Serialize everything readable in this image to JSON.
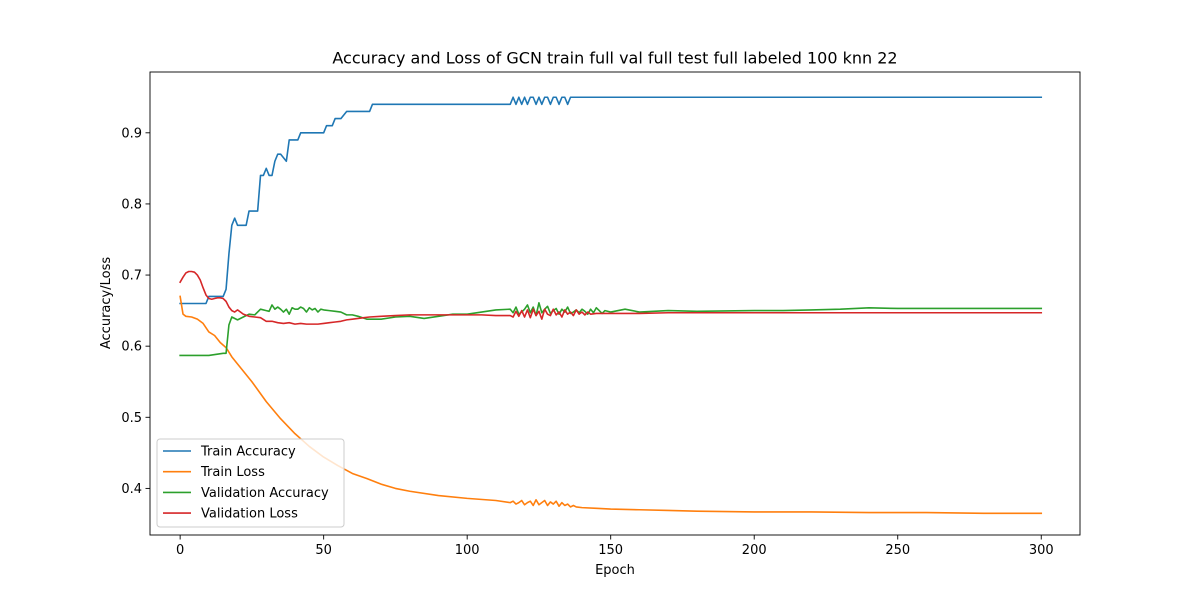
{
  "chart_data": {
    "type": "line",
    "title": "Accuracy and Loss of GCN train full val full test full labeled 100 knn 22",
    "xlabel": "Epoch",
    "ylabel": "Accuracy/Loss",
    "xlim": [
      -10.5,
      313.5
    ],
    "ylim": [
      0.3345,
      0.9855
    ],
    "xticks": [
      0,
      50,
      100,
      150,
      200,
      250,
      300
    ],
    "yticks": [
      0.4,
      0.5,
      0.6,
      0.7,
      0.8,
      0.9
    ],
    "xtick_labels": [
      "0",
      "50",
      "100",
      "150",
      "200",
      "250",
      "300"
    ],
    "ytick_labels": [
      "0.4",
      "0.5",
      "0.6",
      "0.7",
      "0.8",
      "0.9"
    ],
    "legend_position": "lower-left",
    "series": [
      {
        "name": "Train Accuracy",
        "color": "#1f77b4",
        "x": [
          0,
          9,
          10,
          14,
          15,
          16,
          17,
          18,
          19,
          20,
          23,
          24,
          27,
          28,
          29,
          30,
          31,
          32,
          33,
          34,
          35,
          37,
          38,
          39,
          41,
          42,
          47,
          48,
          50,
          51,
          52,
          53,
          54,
          55,
          56,
          58,
          59,
          60,
          61,
          66,
          67,
          68,
          115,
          116,
          117,
          118,
          119,
          120,
          121,
          122,
          123,
          124,
          125,
          126,
          127,
          128,
          129,
          130,
          131,
          132,
          133,
          134,
          135,
          136,
          137,
          140,
          300
        ],
        "y": [
          0.66,
          0.66,
          0.67,
          0.67,
          0.67,
          0.68,
          0.73,
          0.77,
          0.78,
          0.77,
          0.77,
          0.79,
          0.79,
          0.84,
          0.84,
          0.85,
          0.84,
          0.84,
          0.86,
          0.87,
          0.87,
          0.86,
          0.89,
          0.89,
          0.89,
          0.9,
          0.9,
          0.9,
          0.9,
          0.91,
          0.91,
          0.91,
          0.92,
          0.92,
          0.92,
          0.93,
          0.93,
          0.93,
          0.93,
          0.93,
          0.94,
          0.94,
          0.94,
          0.95,
          0.94,
          0.95,
          0.94,
          0.95,
          0.94,
          0.95,
          0.95,
          0.94,
          0.95,
          0.94,
          0.95,
          0.95,
          0.94,
          0.95,
          0.95,
          0.94,
          0.95,
          0.95,
          0.94,
          0.95,
          0.95,
          0.95,
          0.95
        ]
      },
      {
        "name": "Train Loss",
        "color": "#ff7f0e",
        "x": [
          0,
          1,
          2,
          4,
          6,
          8,
          10,
          12,
          14,
          16,
          18,
          20,
          25,
          30,
          35,
          40,
          45,
          50,
          55,
          60,
          65,
          70,
          75,
          80,
          90,
          100,
          110,
          115,
          116,
          117,
          118,
          119,
          120,
          121,
          122,
          123,
          124,
          125,
          126,
          127,
          128,
          129,
          130,
          131,
          132,
          133,
          134,
          135,
          136,
          137,
          138,
          140,
          145,
          150,
          160,
          170,
          180,
          200,
          220,
          240,
          260,
          280,
          300
        ],
        "y": [
          0.67,
          0.645,
          0.642,
          0.641,
          0.638,
          0.632,
          0.62,
          0.615,
          0.605,
          0.598,
          0.585,
          0.575,
          0.55,
          0.522,
          0.498,
          0.477,
          0.459,
          0.444,
          0.432,
          0.421,
          0.414,
          0.406,
          0.4,
          0.396,
          0.39,
          0.386,
          0.383,
          0.38,
          0.382,
          0.378,
          0.38,
          0.383,
          0.377,
          0.38,
          0.382,
          0.376,
          0.384,
          0.377,
          0.38,
          0.383,
          0.376,
          0.381,
          0.378,
          0.382,
          0.375,
          0.38,
          0.376,
          0.378,
          0.374,
          0.376,
          0.374,
          0.373,
          0.372,
          0.371,
          0.37,
          0.369,
          0.368,
          0.367,
          0.367,
          0.366,
          0.366,
          0.365,
          0.365
        ]
      },
      {
        "name": "Validation Accuracy",
        "color": "#2ca02c",
        "x": [
          0,
          10,
          15,
          16,
          17,
          18,
          20,
          22,
          24,
          26,
          28,
          30,
          31,
          32,
          33,
          34,
          35,
          36,
          37,
          38,
          39,
          40,
          41,
          42,
          43,
          44,
          45,
          46,
          47,
          48,
          49,
          50,
          52,
          54,
          56,
          58,
          60,
          62,
          65,
          70,
          75,
          80,
          85,
          90,
          95,
          100,
          105,
          110,
          115,
          116,
          117,
          118,
          119,
          120,
          121,
          122,
          123,
          124,
          125,
          126,
          127,
          128,
          129,
          130,
          131,
          132,
          133,
          134,
          135,
          136,
          137,
          138,
          139,
          140,
          141,
          142,
          143,
          144,
          145,
          146,
          147,
          148,
          150,
          155,
          160,
          170,
          180,
          200,
          210,
          220,
          230,
          240,
          250,
          260,
          280,
          300
        ],
        "y": [
          0.587,
          0.587,
          0.59,
          0.59,
          0.63,
          0.641,
          0.637,
          0.641,
          0.645,
          0.644,
          0.652,
          0.65,
          0.649,
          0.658,
          0.652,
          0.655,
          0.652,
          0.648,
          0.652,
          0.645,
          0.654,
          0.652,
          0.652,
          0.655,
          0.653,
          0.648,
          0.654,
          0.651,
          0.653,
          0.648,
          0.652,
          0.651,
          0.65,
          0.649,
          0.648,
          0.644,
          0.644,
          0.642,
          0.638,
          0.638,
          0.641,
          0.642,
          0.639,
          0.642,
          0.645,
          0.645,
          0.648,
          0.651,
          0.652,
          0.647,
          0.655,
          0.645,
          0.648,
          0.652,
          0.658,
          0.647,
          0.655,
          0.643,
          0.661,
          0.647,
          0.652,
          0.656,
          0.646,
          0.65,
          0.653,
          0.645,
          0.652,
          0.648,
          0.655,
          0.646,
          0.648,
          0.651,
          0.647,
          0.652,
          0.649,
          0.645,
          0.652,
          0.647,
          0.654,
          0.65,
          0.646,
          0.65,
          0.648,
          0.652,
          0.648,
          0.65,
          0.649,
          0.65,
          0.65,
          0.651,
          0.652,
          0.654,
          0.653,
          0.653,
          0.653,
          0.653
        ]
      },
      {
        "name": "Validation Loss",
        "color": "#d62728",
        "x": [
          0,
          1,
          2,
          3,
          4,
          5,
          6,
          7,
          8,
          9,
          10,
          11,
          12,
          13,
          14,
          15,
          16,
          17,
          18,
          19,
          20,
          22,
          24,
          26,
          28,
          30,
          32,
          34,
          36,
          38,
          40,
          42,
          44,
          46,
          48,
          50,
          52,
          54,
          56,
          58,
          60,
          62,
          64,
          66,
          70,
          75,
          80,
          85,
          90,
          95,
          100,
          105,
          110,
          115,
          116,
          117,
          118,
          119,
          120,
          121,
          122,
          123,
          124,
          125,
          126,
          127,
          128,
          129,
          130,
          131,
          132,
          133,
          134,
          135,
          136,
          137,
          138,
          139,
          140,
          141,
          142,
          143,
          145,
          150,
          160,
          170,
          180,
          200,
          220,
          240,
          260,
          280,
          300
        ],
        "y": [
          0.69,
          0.697,
          0.703,
          0.705,
          0.705,
          0.704,
          0.7,
          0.693,
          0.682,
          0.672,
          0.667,
          0.666,
          0.667,
          0.668,
          0.668,
          0.667,
          0.663,
          0.655,
          0.65,
          0.648,
          0.651,
          0.645,
          0.642,
          0.641,
          0.64,
          0.635,
          0.635,
          0.633,
          0.632,
          0.633,
          0.631,
          0.632,
          0.631,
          0.631,
          0.631,
          0.632,
          0.633,
          0.634,
          0.635,
          0.637,
          0.638,
          0.639,
          0.64,
          0.641,
          0.642,
          0.643,
          0.644,
          0.644,
          0.644,
          0.644,
          0.644,
          0.644,
          0.643,
          0.643,
          0.641,
          0.649,
          0.642,
          0.65,
          0.641,
          0.651,
          0.64,
          0.652,
          0.643,
          0.649,
          0.638,
          0.652,
          0.645,
          0.643,
          0.652,
          0.644,
          0.648,
          0.641,
          0.651,
          0.645,
          0.648,
          0.643,
          0.651,
          0.645,
          0.648,
          0.644,
          0.648,
          0.645,
          0.646,
          0.646,
          0.646,
          0.647,
          0.647,
          0.647,
          0.647,
          0.647,
          0.647,
          0.647,
          0.647
        ]
      }
    ]
  }
}
